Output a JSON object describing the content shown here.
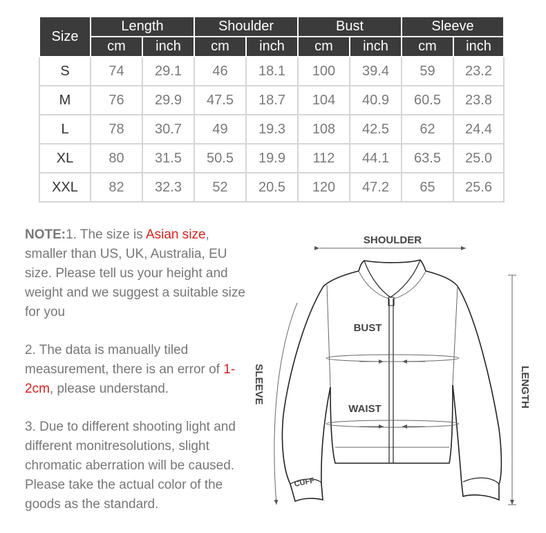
{
  "table": {
    "size_header": "Size",
    "groups": [
      "Length",
      "Shoulder",
      "Bust",
      "Sleeve"
    ],
    "units": [
      "cm",
      "inch",
      "cm",
      "inch",
      "cm",
      "inch",
      "cm",
      "inch"
    ],
    "rows": [
      [
        "S",
        "74",
        "29.1",
        "46",
        "18.1",
        "100",
        "39.4",
        "59",
        "23.2"
      ],
      [
        "M",
        "76",
        "29.9",
        "47.5",
        "18.7",
        "104",
        "40.9",
        "60.5",
        "23.8"
      ],
      [
        "L",
        "78",
        "30.7",
        "49",
        "19.3",
        "108",
        "42.5",
        "62",
        "24.4"
      ],
      [
        "XL",
        "80",
        "31.5",
        "50.5",
        "19.9",
        "112",
        "44.1",
        "63.5",
        "25.0"
      ],
      [
        "XXL",
        "82",
        "32.3",
        "52",
        "20.5",
        "120",
        "47.2",
        "65",
        "25.6"
      ]
    ]
  },
  "notes": {
    "label": "NOTE:",
    "n1_a": "1. The size is ",
    "n1_red": "Asian size",
    "n1_b": ", smaller than US, UK, Australia, EU size. Please tell us your height and weight and we suggest a suitable size for you",
    "n2_a": "2. The data is manually tiled measurement, there is an error of ",
    "n2_red": "1-2cm",
    "n2_b": ", please understand.",
    "n3": "3. Due to different shooting light and different monitresolutions, slight chromatic aberration will be caused. Please take the actual color of the goods as the standard."
  },
  "diagram": {
    "shoulder": "SHOULDER",
    "bust": "BUST",
    "waist": "WAIST",
    "sleeve": "SLEEVE",
    "length": "LENGTH",
    "cuff": "CUFF"
  },
  "colors": {
    "header_bg": "#3b3b3b",
    "accent_red": "#e0201b"
  }
}
